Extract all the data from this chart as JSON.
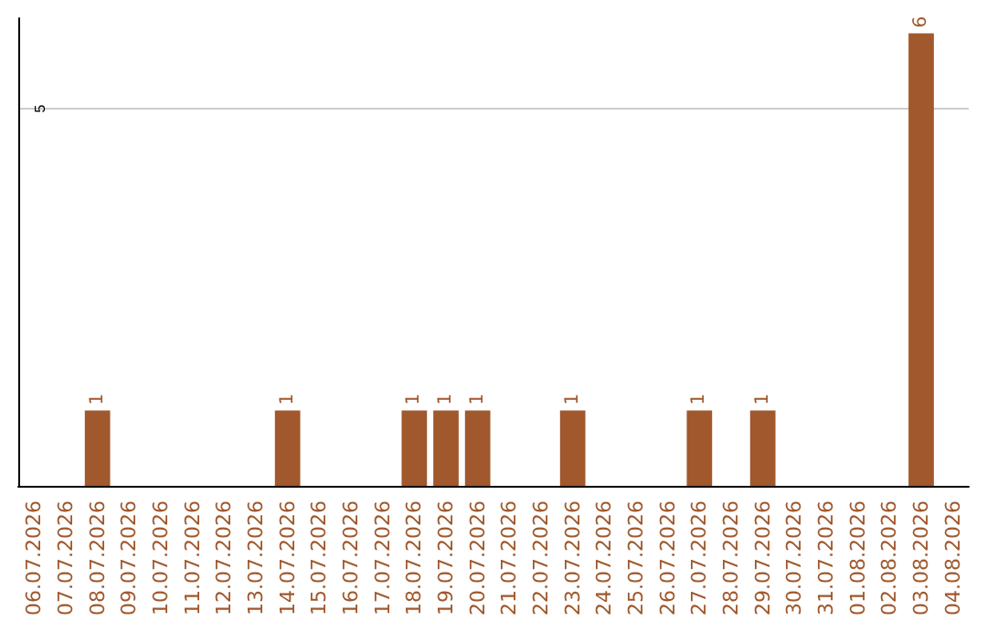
{
  "chart_data": {
    "type": "bar",
    "categories": [
      "06.07.2026",
      "07.07.2026",
      "08.07.2026",
      "09.07.2026",
      "10.07.2026",
      "11.07.2026",
      "12.07.2026",
      "13.07.2026",
      "14.07.2026",
      "15.07.2026",
      "16.07.2026",
      "17.07.2026",
      "18.07.2026",
      "19.07.2026",
      "20.07.2026",
      "21.07.2026",
      "22.07.2026",
      "23.07.2026",
      "24.07.2026",
      "25.07.2026",
      "26.07.2026",
      "27.07.2026",
      "28.07.2026",
      "29.07.2026",
      "30.07.2026",
      "31.07.2026",
      "01.08.2026",
      "02.08.2026",
      "03.08.2026",
      "04.08.2026"
    ],
    "values": [
      0,
      0,
      1,
      0,
      0,
      0,
      0,
      0,
      1,
      0,
      0,
      0,
      1,
      1,
      1,
      0,
      0,
      1,
      0,
      0,
      0,
      1,
      0,
      1,
      0,
      0,
      0,
      0,
      6,
      0
    ],
    "color": "#a0582c",
    "value_labels": [
      null,
      null,
      "1",
      null,
      null,
      null,
      null,
      null,
      "1",
      null,
      null,
      null,
      "1",
      "1",
      "1",
      null,
      null,
      "1",
      null,
      null,
      null,
      "1",
      null,
      "1",
      null,
      null,
      null,
      null,
      "6",
      null
    ],
    "ylim": [
      0,
      6.2
    ],
    "yticks": [
      5
    ],
    "grid": "y"
  }
}
